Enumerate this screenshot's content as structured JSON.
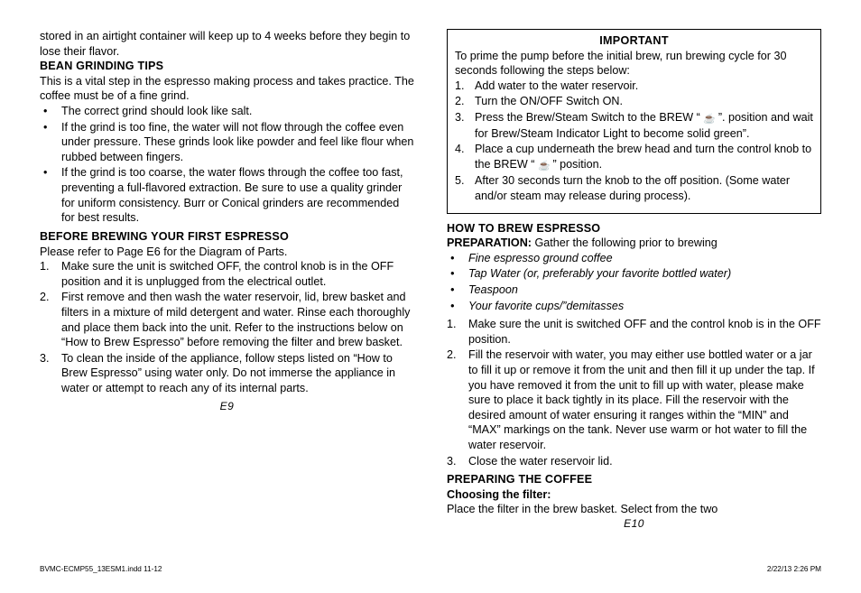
{
  "left": {
    "opening": "stored in an airtight container will keep up to 4 weeks before they begin to lose their flavor.",
    "bean_tips_head": "BEAN GRINDING TIPS",
    "bean_tips_intro": "This is a vital step in the espresso making process and takes practice. The coffee must be of a fine grind.",
    "bean_tips_bullets": [
      "The correct grind should look like salt.",
      "If the grind is too fine, the water will not flow through the coffee even under pressure. These grinds look like powder and feel like flour when rubbed between fingers.",
      "If the grind is too coarse, the water flows through the coffee too fast, preventing a full-flavored extraction. Be sure to use a quality grinder for uniform consistency. Burr or Conical grinders are recommended for best results."
    ],
    "before_head": "BEFORE BREWING YOUR FIRST ESPRESSO",
    "before_intro": "Please refer to Page E6 for the Diagram of Parts.",
    "before_steps": [
      "Make sure the unit is switched OFF, the control knob is in the OFF position and it is unplugged from the electrical outlet.",
      "First remove and then wash the water reservoir, lid, brew basket and filters in a mixture of mild detergent and water. Rinse each thoroughly and place them back into the unit. Refer to the instructions below on “How to Brew Espresso” before removing the filter and brew basket.",
      "To clean the inside of the appliance, follow steps listed on “How to Brew Espresso” using water only. Do not immerse the appliance in water or attempt to reach any of its internal parts."
    ],
    "page_num": "E9"
  },
  "right": {
    "important_title": "IMPORTANT",
    "important_intro": "To prime the pump before the initial brew, run brewing cycle for 30 seconds following the steps below:",
    "important_steps": [
      "Add water to the water reservoir.",
      "Turn the ON/OFF Switch ON.",
      {
        "pre": "Press the Brew/Steam Switch to the BREW “ ",
        "post": " ”. position and wait for Brew/Steam Indicator Light to become solid green”."
      },
      {
        "pre": "Place a cup underneath the brew head and turn the control knob to the BREW “ ",
        "post": " ” position."
      },
      "After 30 seconds turn the knob to the off position. (Some water and/or steam may release during process)."
    ],
    "how_head": "HOW TO BREW ESPRESSO",
    "prep_label": "PREPARATION:",
    "prep_text": " Gather the following prior to brewing",
    "prep_bullets": [
      "Fine espresso ground coffee",
      "Tap Water (or, preferably your favorite bottled water)",
      "Teaspoon",
      "Your favorite cups/”demitasses"
    ],
    "prep_steps": [
      "Make sure the unit is switched OFF and the control knob is in the OFF position.",
      "Fill the reservoir with water, you may either use bottled water or a jar to fill it up or remove it from the unit and then fill it up under the tap. If you have removed it from the unit to fill up with water, please make sure to place it back tightly in its place. Fill the reservoir with the desired amount of water ensuring it ranges within the “MIN” and “MAX” markings on the tank. Never use warm or hot water to fill the water reservoir.",
      "Close the water reservoir lid."
    ],
    "prepare_head": "PREPARING THE COFFEE",
    "choosing_head": "Choosing the filter:",
    "choosing_text": "Place the filter in the brew basket. Select from the two",
    "page_num": "E10"
  },
  "footer": {
    "left": "BVMC-ECMP55_13ESM1.indd   11-12",
    "right": "2/22/13   2:26 PM"
  },
  "icons": {
    "cup": "☕"
  }
}
